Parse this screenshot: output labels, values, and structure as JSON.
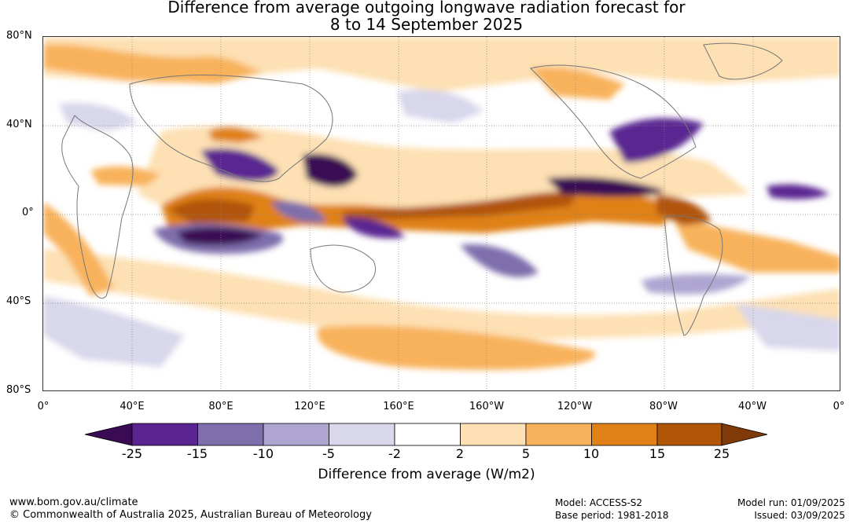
{
  "title_line1": "Difference from average outgoing longwave radiation forecast for",
  "title_line2": "8 to 14 September 2025",
  "lat_labels": [
    "80°N",
    "40°N",
    "0°",
    "40°S",
    "80°S"
  ],
  "lon_labels": [
    "0°",
    "40°E",
    "80°E",
    "120°E",
    "160°E",
    "160°W",
    "120°W",
    "80°W",
    "40°W",
    "0°"
  ],
  "colorbar": {
    "ticks": [
      "-25",
      "-15",
      "-10",
      "-5",
      "-2",
      "2",
      "5",
      "10",
      "15",
      "25"
    ],
    "colors": [
      "#3a0a55",
      "#5a2591",
      "#7e6eac",
      "#aea5d1",
      "#d8d7eb",
      "#ffffff",
      "#fde0b3",
      "#f8b25c",
      "#e08118",
      "#b15507",
      "#7f3a08"
    ],
    "label": "Difference from average (W/m2)"
  },
  "footer": {
    "url": "www.bom.gov.au/climate",
    "copyright": "© Commonwealth of Australia 2025, Australian Bureau of Meteorology",
    "model": "Model: ACCESS-S2",
    "base_period": "Base period: 1981-2018",
    "model_run": "Model run: 01/09/2025",
    "issued": "Issued: 03/09/2025"
  }
}
